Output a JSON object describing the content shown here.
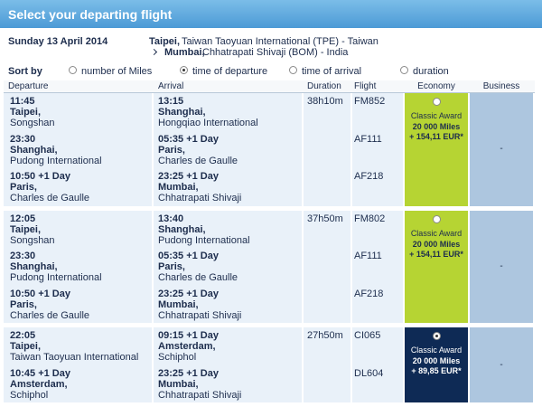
{
  "header": {
    "title": "Select your departing flight"
  },
  "trip": {
    "date": "Sunday 13 April 2014",
    "origin_city": "Taipei,",
    "origin_detail": "Taiwan Taoyuan International (TPE) - Taiwan",
    "destination_city": "Mumbai,",
    "destination_detail": "Chhatrapati Shivaji (BOM) - India"
  },
  "sort": {
    "label": "Sort by",
    "options": [
      {
        "label": "number of Miles",
        "selected": false
      },
      {
        "label": "time of departure",
        "selected": true
      },
      {
        "label": "time of arrival",
        "selected": false
      },
      {
        "label": "duration",
        "selected": false
      }
    ]
  },
  "columns": [
    "Departure",
    "Arrival",
    "Duration",
    "Flight",
    "Economy",
    "Business"
  ],
  "options": [
    {
      "duration": "38h10m",
      "segments": [
        {
          "departure_time": "11:45",
          "departure_city": "Taipei,",
          "departure_airport": "Songshan",
          "arrival_time": "13:15",
          "arrival_city": "Shanghai,",
          "arrival_airport": "Hongqiao International",
          "flight": "FM852"
        },
        {
          "departure_time": "23:30",
          "departure_city": "Shanghai,",
          "departure_airport": "Pudong International",
          "arrival_time": "05:35 +1 Day",
          "arrival_city": "Paris,",
          "arrival_airport": "Charles de Gaulle",
          "flight": "AF111"
        },
        {
          "departure_time": "10:50 +1 Day",
          "departure_city": "Paris,",
          "departure_airport": "Charles de Gaulle",
          "arrival_time": "23:25 +1 Day",
          "arrival_city": "Mumbai,",
          "arrival_airport": "Chhatrapati Shivaji",
          "flight": "AF218"
        }
      ],
      "economy": {
        "selected": false,
        "award": "Classic Award",
        "miles": "20 000 Miles",
        "price": "+ 154,11 EUR*"
      },
      "business": "-"
    },
    {
      "duration": "37h50m",
      "segments": [
        {
          "departure_time": "12:05",
          "departure_city": "Taipei,",
          "departure_airport": "Songshan",
          "arrival_time": "13:40",
          "arrival_city": "Shanghai,",
          "arrival_airport": "Pudong International",
          "flight": "FM802"
        },
        {
          "departure_time": "23:30",
          "departure_city": "Shanghai,",
          "departure_airport": "Pudong International",
          "arrival_time": "05:35 +1 Day",
          "arrival_city": "Paris,",
          "arrival_airport": "Charles de Gaulle",
          "flight": "AF111"
        },
        {
          "departure_time": "10:50 +1 Day",
          "departure_city": "Paris,",
          "departure_airport": "Charles de Gaulle",
          "arrival_time": "23:25 +1 Day",
          "arrival_city": "Mumbai,",
          "arrival_airport": "Chhatrapati Shivaji",
          "flight": "AF218"
        }
      ],
      "economy": {
        "selected": false,
        "award": "Classic Award",
        "miles": "20 000 Miles",
        "price": "+ 154,11 EUR*"
      },
      "business": "-"
    },
    {
      "duration": "27h50m",
      "segments": [
        {
          "departure_time": "22:05",
          "departure_city": "Taipei,",
          "departure_airport": "Taiwan Taoyuan International",
          "arrival_time": "09:15 +1 Day",
          "arrival_city": "Amsterdam,",
          "arrival_airport": "Schiphol",
          "flight": "CI065"
        },
        {
          "departure_time": "10:45 +1 Day",
          "departure_city": "Amsterdam,",
          "departure_airport": "Schiphol",
          "arrival_time": "23:25 +1 Day",
          "arrival_city": "Mumbai,",
          "arrival_airport": "Chhatrapati Shivaji",
          "flight": "DL604"
        }
      ],
      "economy": {
        "selected": true,
        "award": "Classic Award",
        "miles": "20 000 Miles",
        "price": "+ 89,85 EUR*"
      },
      "business": "-"
    }
  ]
}
